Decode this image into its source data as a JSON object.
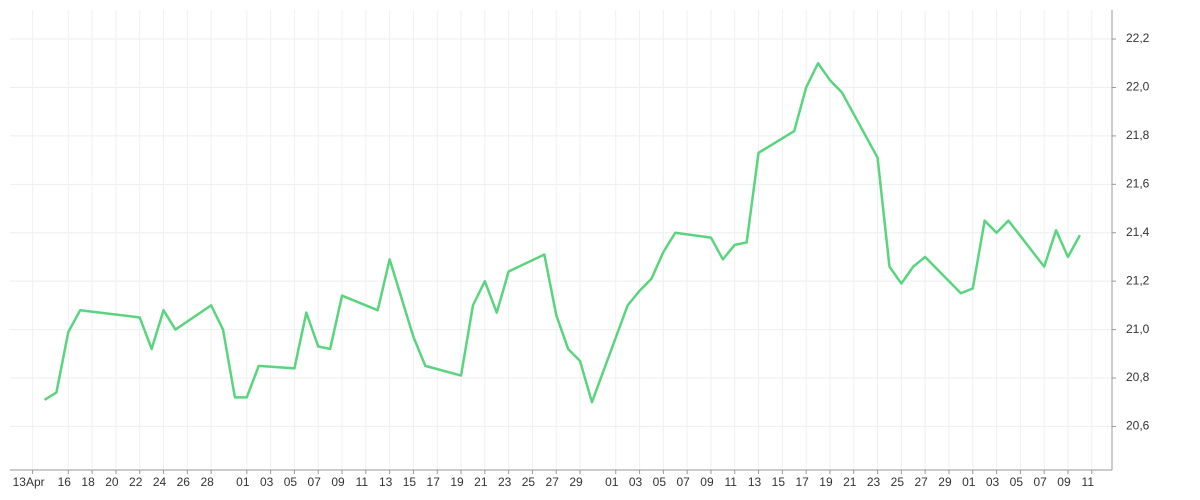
{
  "chart_data": {
    "type": "line",
    "x": [
      1,
      2,
      3,
      4,
      9,
      10,
      11,
      12,
      15,
      16,
      17,
      18,
      19,
      22,
      23,
      24,
      25,
      26,
      29,
      30,
      32,
      33,
      36,
      37,
      38,
      39,
      40,
      43,
      44,
      45,
      46,
      47,
      50,
      51,
      52,
      53,
      54,
      57,
      58,
      59,
      60,
      61,
      64,
      65,
      66,
      67,
      68,
      71,
      72,
      73,
      74,
      75,
      78,
      79,
      80,
      81,
      82,
      85,
      86,
      87,
      88
    ],
    "values": [
      20.71,
      20.74,
      20.99,
      21.08,
      21.05,
      20.92,
      21.08,
      21.0,
      21.1,
      21.0,
      20.72,
      20.72,
      20.85,
      20.84,
      21.07,
      20.93,
      20.92,
      21.14,
      21.08,
      21.29,
      20.97,
      20.85,
      20.81,
      21.1,
      21.2,
      21.07,
      21.24,
      21.31,
      21.06,
      20.92,
      20.87,
      20.7,
      21.1,
      21.16,
      21.21,
      21.32,
      21.4,
      21.38,
      21.29,
      21.35,
      21.36,
      21.73,
      21.82,
      22.0,
      22.1,
      22.03,
      21.98,
      21.71,
      21.26,
      21.19,
      21.26,
      21.3,
      21.15,
      21.17,
      21.45,
      21.4,
      21.45,
      21.26,
      21.41,
      21.3,
      21.39
    ],
    "color": "#5ad47e",
    "xlim": [
      -1.9,
      90.7
    ],
    "xticks": [
      {
        "value": 0,
        "label": "13Apr"
      },
      {
        "value": 3,
        "label": "16"
      },
      {
        "value": 5,
        "label": "18"
      },
      {
        "value": 7,
        "label": "20"
      },
      {
        "value": 9,
        "label": "22"
      },
      {
        "value": 11,
        "label": "24"
      },
      {
        "value": 13,
        "label": "26"
      },
      {
        "value": 15,
        "label": "28"
      },
      {
        "value": 18,
        "label": "01"
      },
      {
        "value": 20,
        "label": "03"
      },
      {
        "value": 22,
        "label": "05"
      },
      {
        "value": 24,
        "label": "07"
      },
      {
        "value": 26,
        "label": "09"
      },
      {
        "value": 28,
        "label": "11"
      },
      {
        "value": 30,
        "label": "13"
      },
      {
        "value": 32,
        "label": "15"
      },
      {
        "value": 34,
        "label": "17"
      },
      {
        "value": 36,
        "label": "19"
      },
      {
        "value": 38,
        "label": "21"
      },
      {
        "value": 40,
        "label": "23"
      },
      {
        "value": 42,
        "label": "25"
      },
      {
        "value": 44,
        "label": "27"
      },
      {
        "value": 46,
        "label": "29"
      },
      {
        "value": 49,
        "label": "01"
      },
      {
        "value": 51,
        "label": "03"
      },
      {
        "value": 53,
        "label": "05"
      },
      {
        "value": 55,
        "label": "07"
      },
      {
        "value": 57,
        "label": "09"
      },
      {
        "value": 59,
        "label": "11"
      },
      {
        "value": 61,
        "label": "13"
      },
      {
        "value": 63,
        "label": "15"
      },
      {
        "value": 65,
        "label": "17"
      },
      {
        "value": 67,
        "label": "19"
      },
      {
        "value": 69,
        "label": "21"
      },
      {
        "value": 71,
        "label": "23"
      },
      {
        "value": 73,
        "label": "25"
      },
      {
        "value": 75,
        "label": "27"
      },
      {
        "value": 77,
        "label": "29"
      },
      {
        "value": 79,
        "label": "01"
      },
      {
        "value": 81,
        "label": "03"
      },
      {
        "value": 83,
        "label": "05"
      },
      {
        "value": 85,
        "label": "07"
      },
      {
        "value": 87,
        "label": "09"
      },
      {
        "value": 89,
        "label": "11"
      }
    ],
    "ylim": [
      20.42,
      22.32
    ],
    "yticks": [
      {
        "value": 20.6,
        "label": "20,6"
      },
      {
        "value": 20.8,
        "label": "20,8"
      },
      {
        "value": 21.0,
        "label": "21,0"
      },
      {
        "value": 21.2,
        "label": "21,2"
      },
      {
        "value": 21.4,
        "label": "21,4"
      },
      {
        "value": 21.6,
        "label": "21,6"
      },
      {
        "value": 21.8,
        "label": "21,8"
      },
      {
        "value": 22.0,
        "label": "22,0"
      },
      {
        "value": 22.2,
        "label": "22,2"
      }
    ],
    "grid": true
  }
}
